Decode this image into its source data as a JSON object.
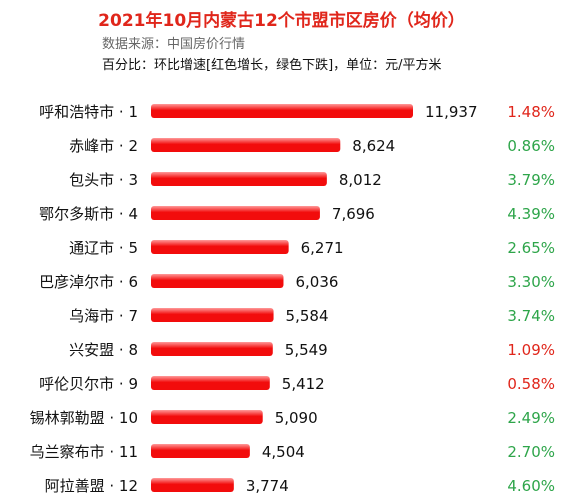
{
  "title": "2021年10月内蒙古12个市盟市区房价（均价）",
  "source_label": "数据来源：中国房价行情",
  "note": "百分比：环比增速[红色增长，绿色下跌]，单位：元/平方米",
  "colors": {
    "bar": "#f20c0c",
    "bar_light": "#ff9a9a",
    "up": "#e0261b",
    "down": "#2ea54a"
  },
  "chart_data": {
    "type": "bar",
    "orientation": "horizontal",
    "categories": [
      "呼和浩特市 · 1",
      "赤峰市 · 2",
      "包头市 · 3",
      "鄂尔多斯市 · 4",
      "通辽市 · 5",
      "巴彦淖尔市 · 6",
      "乌海市 · 7",
      "兴安盟 · 8",
      "呼伦贝尔市 · 9",
      "锡林郭勒盟 · 10",
      "乌兰察布市 · 11",
      "阿拉善盟 · 12"
    ],
    "values": [
      11937,
      8624,
      8012,
      7696,
      6271,
      6036,
      5584,
      5549,
      5412,
      5090,
      4504,
      3774
    ],
    "value_labels": [
      "11,937",
      "8,624",
      "8,012",
      "7,696",
      "6,271",
      "6,036",
      "5,584",
      "5,549",
      "5,412",
      "5,090",
      "4,504",
      "3,774"
    ],
    "changes": [
      "1.48%",
      "0.86%",
      "3.79%",
      "4.39%",
      "2.65%",
      "3.30%",
      "3.74%",
      "1.09%",
      "0.58%",
      "2.49%",
      "2.70%",
      "4.60%"
    ],
    "change_colors": [
      "red",
      "green",
      "green",
      "green",
      "green",
      "green",
      "green",
      "red",
      "red",
      "green",
      "green",
      "green"
    ],
    "xlim": [
      0,
      11937
    ],
    "grid": false,
    "legend": "none"
  }
}
